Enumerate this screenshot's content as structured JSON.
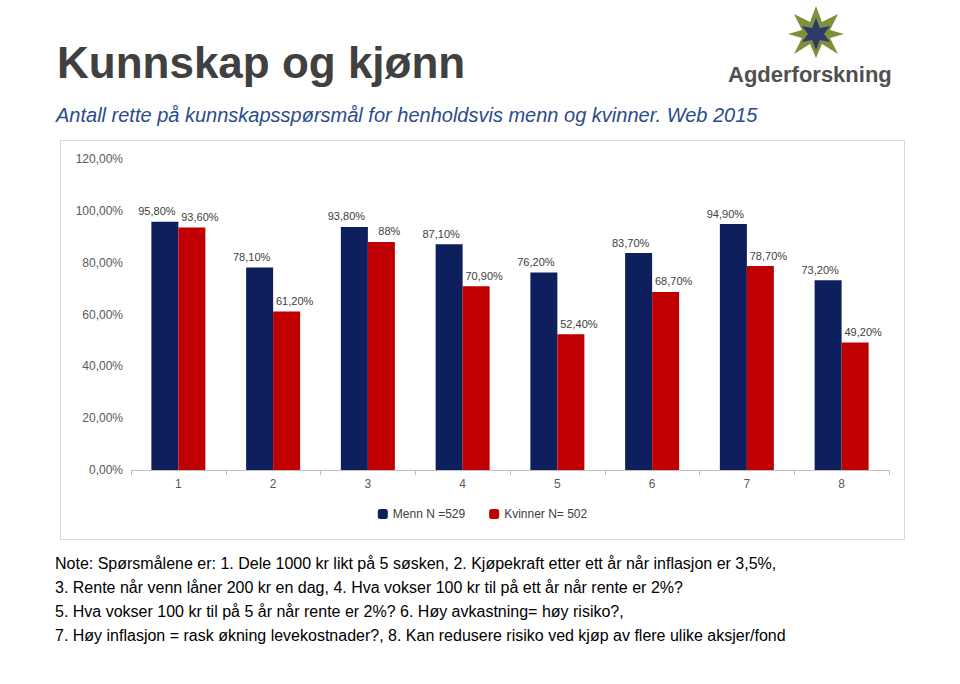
{
  "chart_data": {
    "type": "bar",
    "title": "Kunnskap og kjønn",
    "subtitle": "Antall rette på kunnskapsspørsmål for henholdsvis menn og kvinner. Web 2015",
    "categories": [
      "1",
      "2",
      "3",
      "4",
      "5",
      "6",
      "7",
      "8"
    ],
    "series": [
      {
        "name": "Menn N =529",
        "color": "#0d1f5c",
        "values": [
          95.8,
          78.1,
          93.8,
          87.1,
          76.2,
          83.7,
          94.9,
          73.2
        ],
        "value_labels": [
          "95,80%",
          "78,10%",
          "93,80%",
          "87,10%",
          "76,20%",
          "83,70%",
          "94,90%",
          "73,20%"
        ]
      },
      {
        "name": "Kvinner N= 502",
        "color": "#c00000",
        "values": [
          93.6,
          61.2,
          88,
          70.9,
          52.4,
          68.7,
          78.7,
          49.2
        ],
        "value_labels": [
          "93,60%",
          "61,20%",
          "88%",
          "70,90%",
          "52,40%",
          "68,70%",
          "78,70%",
          "49,20%"
        ]
      }
    ],
    "ylim": [
      0,
      120
    ],
    "yticks": [
      {
        "value": 0,
        "label": "0,00%"
      },
      {
        "value": 20,
        "label": "20,00%"
      },
      {
        "value": 40,
        "label": "40,00%"
      },
      {
        "value": 60,
        "label": "60,00%"
      },
      {
        "value": 80,
        "label": "80,00%"
      },
      {
        "value": 100,
        "label": "100,00%"
      },
      {
        "value": 120,
        "label": "120,00%"
      }
    ],
    "grid": false,
    "legend": "bottom",
    "data_labels": true,
    "note": [
      "Note: Spørsmålene er:  1. Dele 1000 kr likt på 5 søsken, 2. Kjøpekraft etter ett år når inflasjon er 3,5%,",
      "3. Rente når venn låner 200 kr en dag, 4. Hva vokser 100 kr til på ett år når rente er 2%?",
      "5. Hva vokser 100 kr til på 5 år når rente er 2%? 6. Høy avkastning= høy risiko?,",
      "7. Høy inflasjon = rask økning levekostnader?, 8. Kan redusere risiko ved kjøp av flere ulike aksjer/fond"
    ]
  },
  "logo": {
    "text": "Agderforskning"
  }
}
